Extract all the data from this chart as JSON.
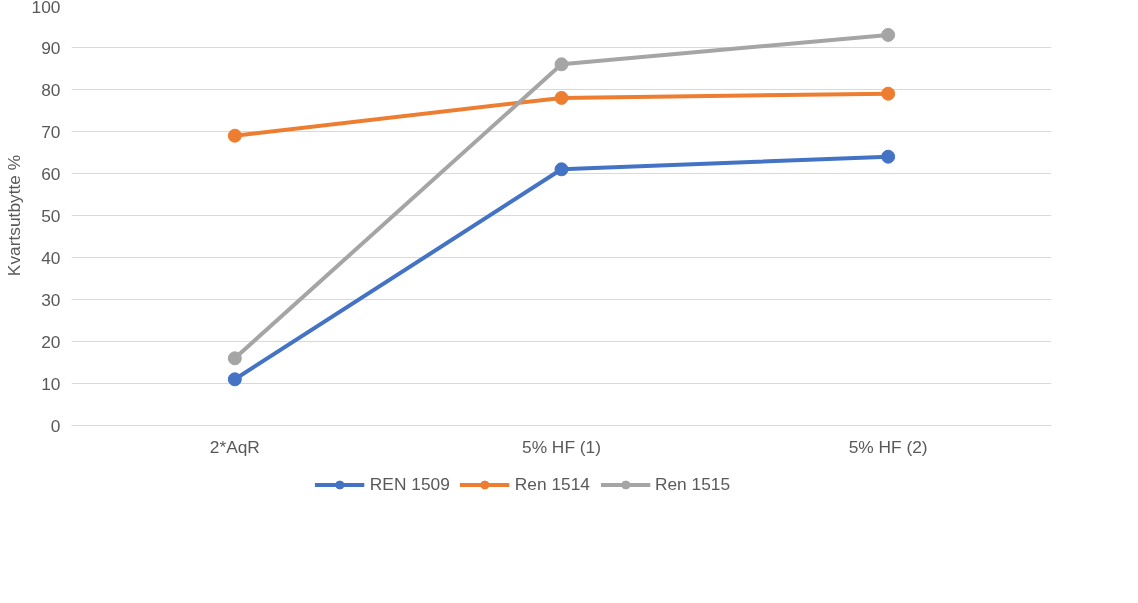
{
  "chart_data": {
    "type": "line",
    "ylabel": "Kvartsutbytte %",
    "categories": [
      "2*AqR",
      "5% HF (1)",
      "5% HF (2)"
    ],
    "series": [
      {
        "name": "REN 1509",
        "color": "#4472c4",
        "values": [
          11,
          61,
          64
        ]
      },
      {
        "name": "Ren 1514",
        "color": "#ed7d31",
        "values": [
          69,
          78,
          79
        ]
      },
      {
        "name": "Ren 1515",
        "color": "#a5a5a5",
        "values": [
          16,
          86,
          93
        ]
      }
    ],
    "ylim": [
      0,
      100
    ],
    "yticks": [
      0,
      10,
      20,
      30,
      40,
      50,
      60,
      70,
      80,
      90,
      100
    ],
    "grid": "y",
    "legend": "bottom",
    "marker": "circle",
    "line_style": "solid"
  }
}
